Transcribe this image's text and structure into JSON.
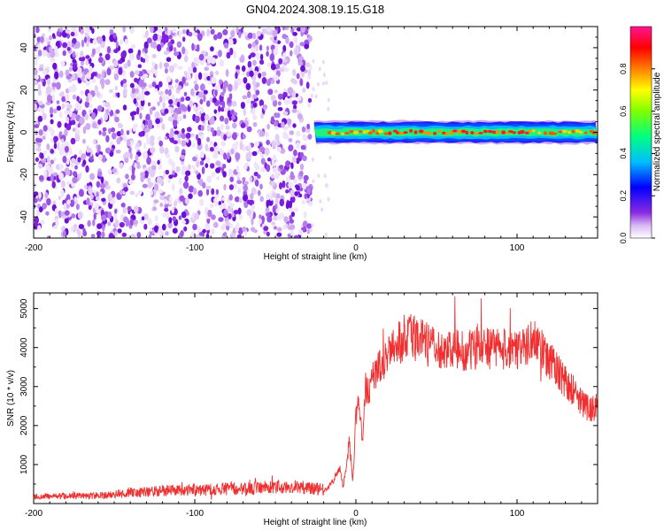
{
  "figure": {
    "title": "GN04.2024.308.19.15.G18"
  },
  "chart_data": [
    {
      "type": "heatmap",
      "xlabel": "Height of straight line (km)",
      "ylabel": "Frequency (Hz)",
      "xlim": [
        -200,
        150
      ],
      "ylim": [
        -50,
        50
      ],
      "x_ticks": [
        -200,
        -100,
        0,
        100
      ],
      "y_ticks": [
        -40,
        -20,
        0,
        20,
        40
      ],
      "grid": false,
      "noise_region_x": [
        -200,
        -28
      ],
      "signal_band": {
        "x_start": -26,
        "x_end": 150,
        "center_freq": 0,
        "half_width": 4
      },
      "colorbar": {
        "label": "Normalized spectral amplitude",
        "range": [
          0,
          1
        ],
        "ticks": [
          0.0,
          0.2,
          0.4,
          0.6,
          0.8
        ],
        "colors": [
          "#ffffff",
          "#8a2be2",
          "#0000ff",
          "#00bfff",
          "#00ff7f",
          "#7fff00",
          "#ffff00",
          "#ff7f00",
          "#ff0000",
          "#ff1493"
        ]
      }
    },
    {
      "type": "line",
      "xlabel": "Height of straight line (km)",
      "ylabel": "SNR (10 * v/v)",
      "xlim": [
        -200,
        150
      ],
      "ylim": [
        0,
        5400
      ],
      "x_ticks": [
        -200,
        -100,
        0,
        100
      ],
      "y_ticks": [
        1000,
        2000,
        3000,
        4000,
        5000
      ],
      "color": "#f03030",
      "envelope_x": [
        -200,
        -180,
        -160,
        -150,
        -140,
        -138,
        -130,
        -120,
        -100,
        -80,
        -60,
        -40,
        -25,
        -18,
        -14,
        -10,
        -8,
        -6,
        -4,
        -2,
        0,
        2,
        4,
        6,
        8,
        10,
        12,
        14,
        16,
        20,
        25,
        30,
        40,
        50,
        60,
        70,
        80,
        90,
        100,
        110,
        115,
        120,
        125,
        130,
        135,
        140,
        145,
        150
      ],
      "envelope_y": [
        180,
        190,
        200,
        230,
        300,
        260,
        300,
        330,
        350,
        380,
        400,
        420,
        380,
        350,
        600,
        900,
        400,
        1000,
        1600,
        500,
        2200,
        2600,
        1600,
        3000,
        2800,
        3200,
        3400,
        3500,
        3550,
        3750,
        4000,
        4300,
        4200,
        3900,
        3950,
        3950,
        4000,
        3950,
        4000,
        4200,
        4000,
        3700,
        3400,
        3100,
        2900,
        2600,
        2400,
        2500
      ],
      "noise_amplitude": 0.14
    }
  ]
}
